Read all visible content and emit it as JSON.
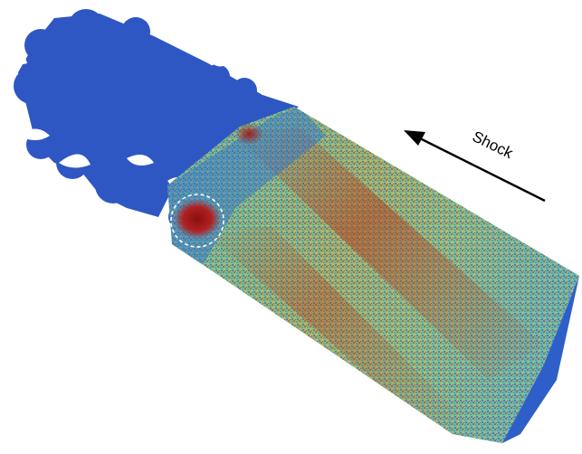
{
  "annotation": {
    "label": "Shock",
    "arrow_direction": "upper-left",
    "arrow_color": "#000000"
  },
  "highlight": {
    "marker": "dashed-circle",
    "color": "#ffffff"
  },
  "colormap": {
    "low": "#2f58c8",
    "mid_low": "#2ea7d8",
    "mid": "#7fc97f",
    "mid_high": "#c8b030",
    "high": "#a01818"
  }
}
